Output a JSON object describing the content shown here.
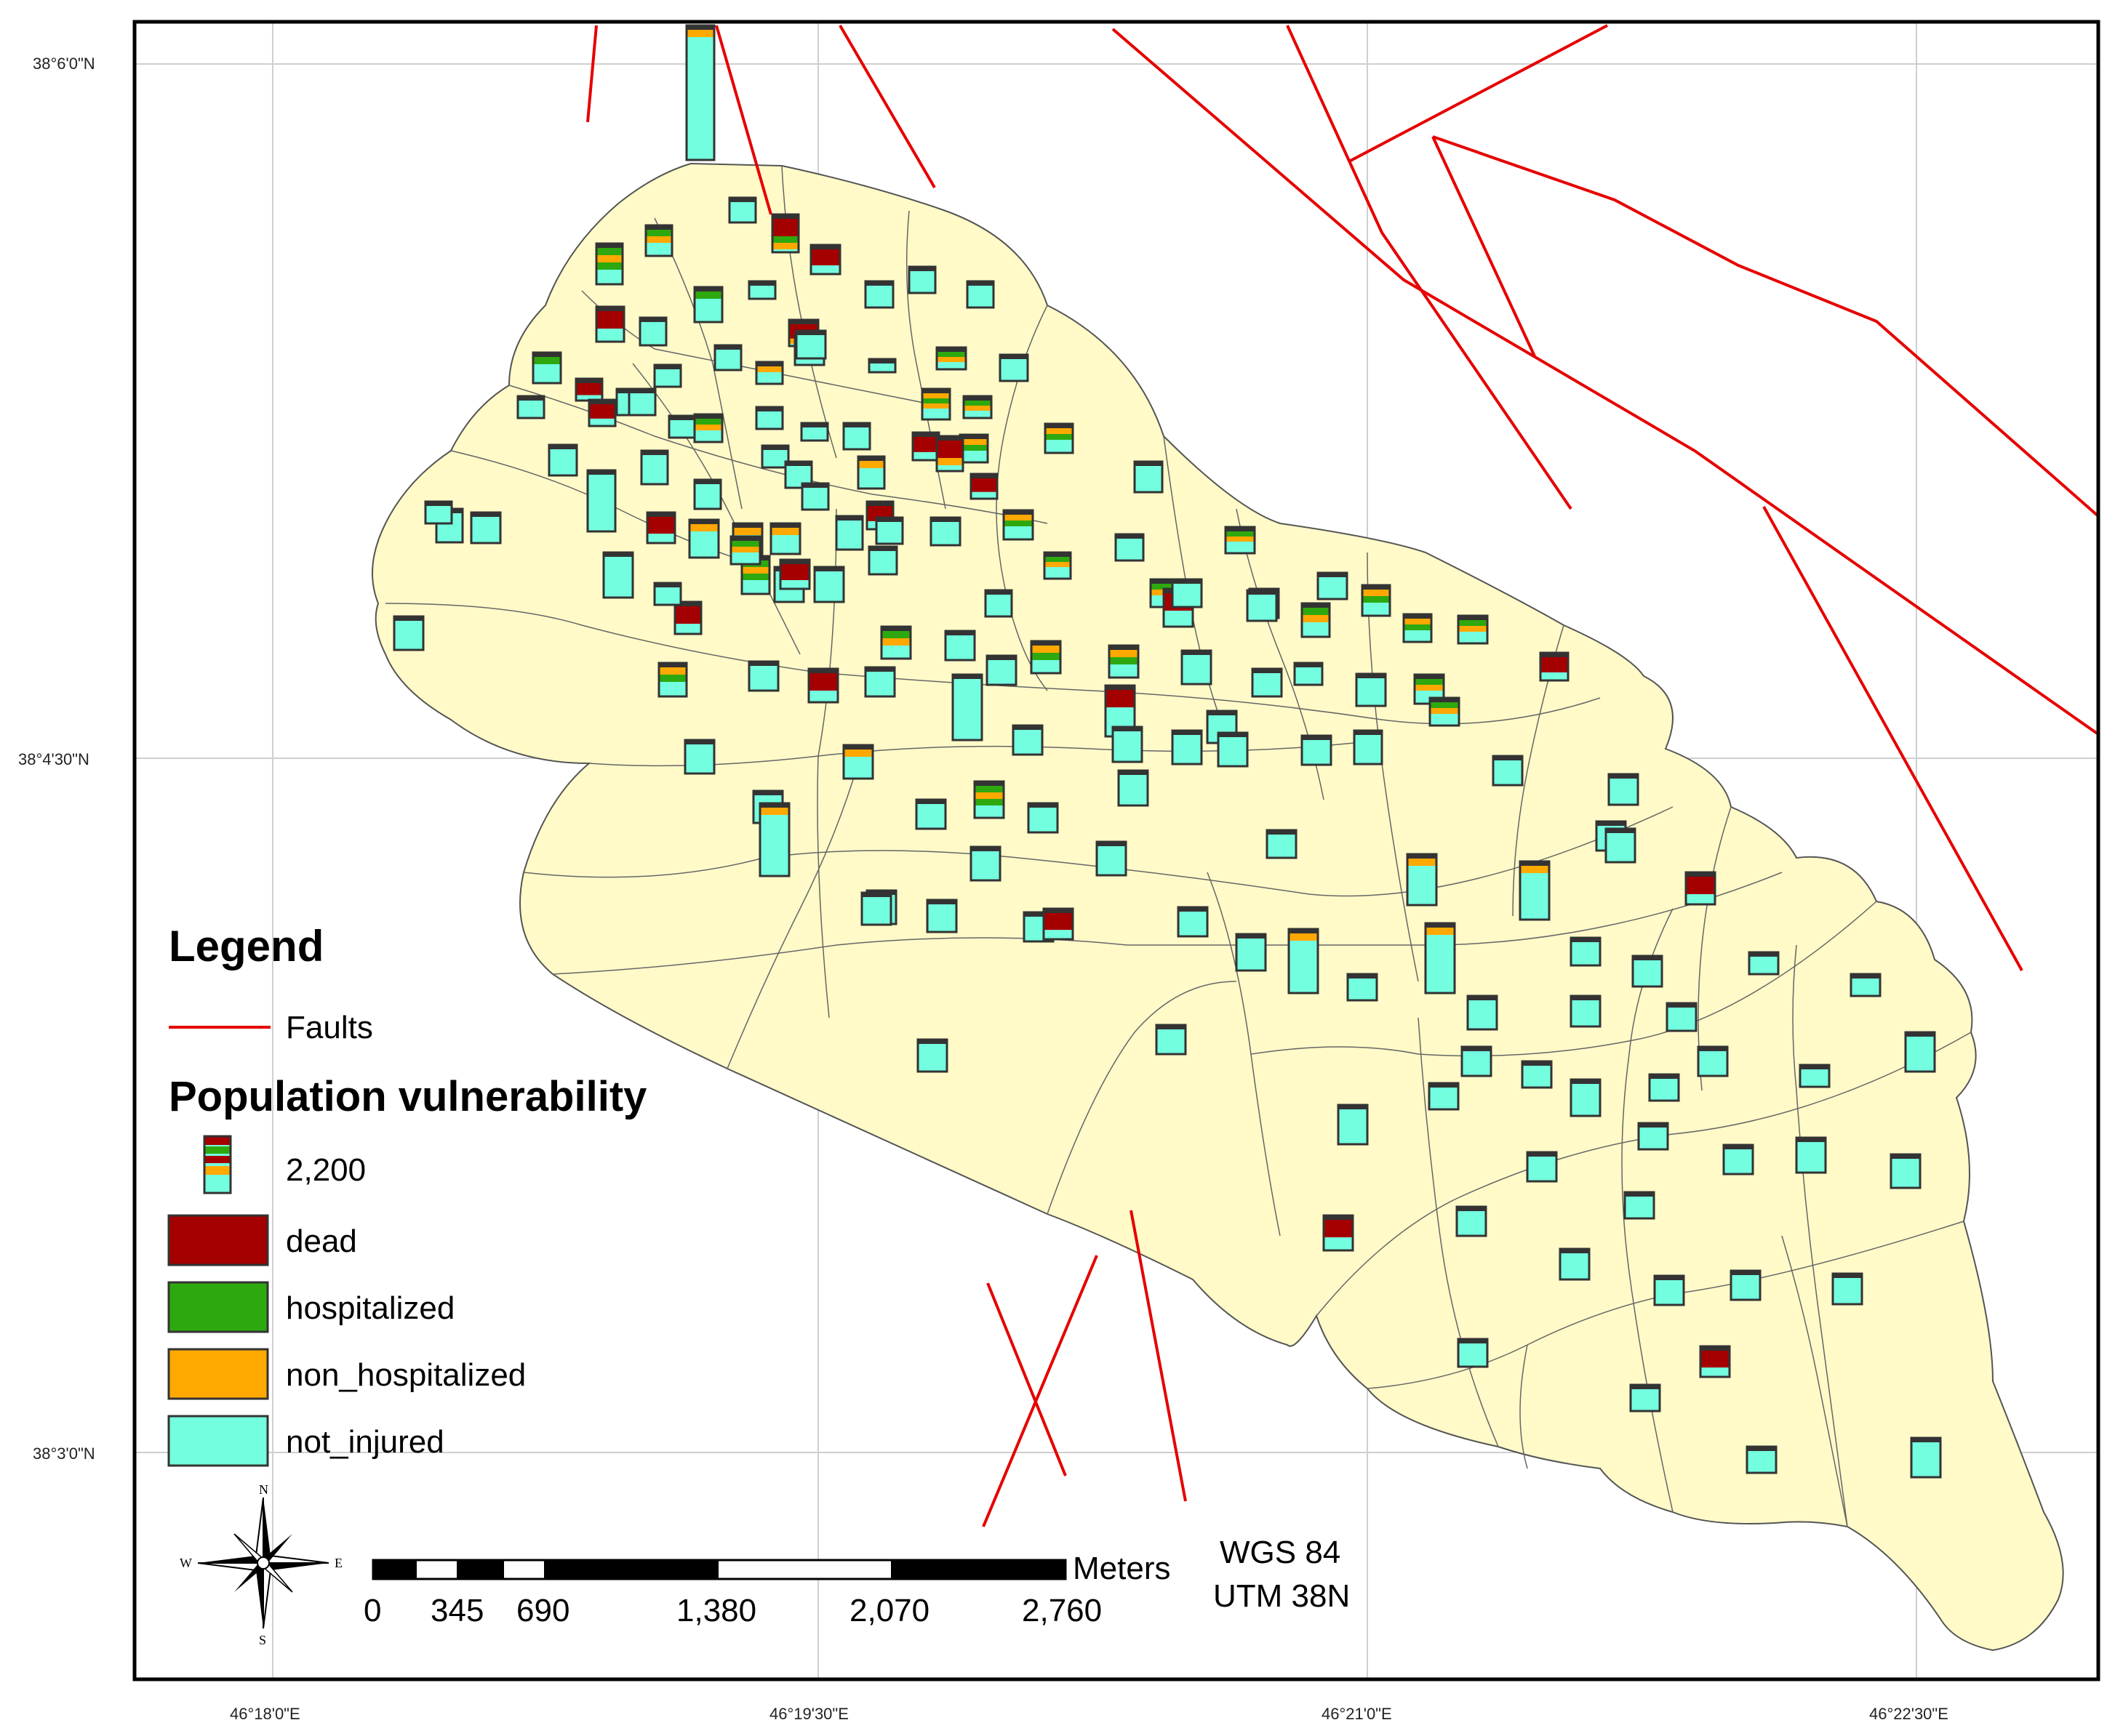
{
  "graticule": {
    "lat_labels": [
      "38°6'0\"N",
      "38°4'30\"N",
      "38°3'0\"N"
    ],
    "lon_labels": [
      "46°18'0\"E",
      "46°19'30\"E",
      "46°21'0\"E",
      "46°22'30\"E"
    ]
  },
  "legend": {
    "title": "Legend",
    "faults_label": "Faults",
    "population_title": "Population vulnerability",
    "size_value": "2,200",
    "categories": [
      {
        "key": "dead",
        "label": "dead",
        "color": "#a50000"
      },
      {
        "key": "hospitalized",
        "label": "hospitalized",
        "color": "#2ea80f"
      },
      {
        "key": "non_hospitalized",
        "label": "non_hospitalized",
        "color": "#ffa800"
      },
      {
        "key": "not_injured",
        "label": "not_injured",
        "color": "#73ffdf"
      }
    ]
  },
  "scale_bar": {
    "unit": "Meters",
    "tick_labels": [
      "0",
      "345",
      "690",
      "1,380",
      "2,070",
      "2,760"
    ]
  },
  "projection": {
    "line1": "WGS 84",
    "line2": "UTM 38N"
  },
  "compass": {
    "n": "N",
    "s": "S",
    "e": "E",
    "w": "W"
  },
  "colors": {
    "land": "#fffac8",
    "fault": "#e60000",
    "frame": "#000000"
  }
}
